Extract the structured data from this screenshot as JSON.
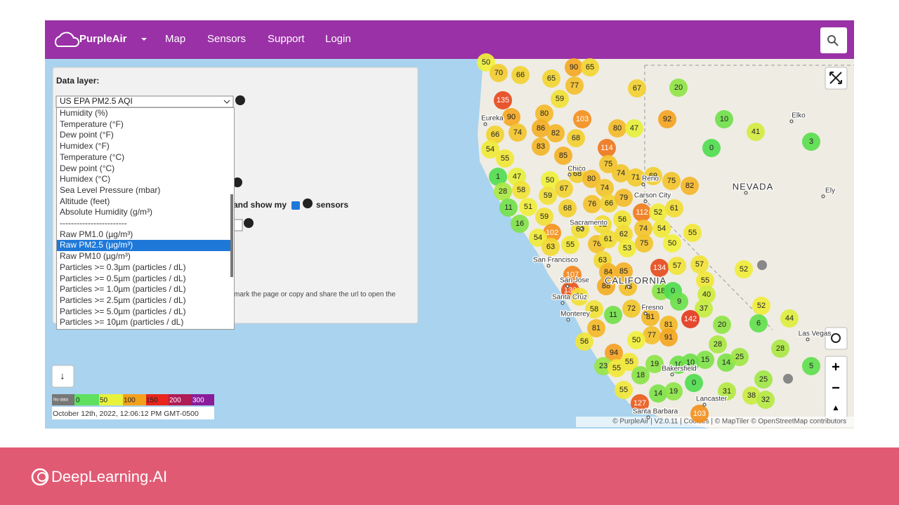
{
  "navbar": {
    "brand": "PurpleAir",
    "links": [
      "Map",
      "Sensors",
      "Support",
      "Login"
    ]
  },
  "panel": {
    "label": "Data layer:",
    "selected": "US EPA PM2.5 AQI",
    "options": [
      "Humidity (%)",
      "Temperature (°F)",
      "Dew point (°F)",
      "Humidex (°F)",
      "Temperature (°C)",
      "Dew point (°C)",
      "Humidex (°C)",
      "Sea Level Pressure (mbar)",
      "Altitude (feet)",
      "Absolute Humidity (g/m³)",
      "------------------------",
      "Raw PM1.0 (µg/m³)",
      "Raw PM2.5 (µg/m³)",
      "Raw PM10 (µg/m³)",
      "Particles >= 0.3µm (particles / dL)",
      "Particles >= 0.5µm (particles / dL)",
      "Particles >= 1.0µm (particles / dL)",
      "Particles >= 2.5µm (particles / dL)",
      "Particles >= 5.0µm (particles / dL)",
      "Particles >= 10µm (particles / dL)"
    ],
    "highlighted_option": 12,
    "show_my_text": "and show my",
    "sensors_text": "sensors",
    "share_text": "mark the page or copy and share the url to open the",
    "download_button": "↓"
  },
  "map": {
    "places": [
      "Eureka",
      "Chico",
      "Reno",
      "Carson City",
      "Sacramento",
      "San Francisco",
      "San Jose",
      "Santa Cruz",
      "Monterey",
      "CALIFORNIA",
      "NEVADA",
      "Elko",
      "Ely",
      "Fresno",
      "Bakersfield",
      "Las Vegas",
      "Lancaster",
      "Santa Barbara"
    ],
    "markers": [
      50,
      70,
      66,
      65,
      90,
      65,
      77,
      59,
      135,
      67,
      20,
      66,
      90,
      80,
      103,
      80,
      47,
      92,
      10,
      41,
      3,
      0,
      74,
      86,
      82,
      68,
      114,
      54,
      83,
      85,
      55,
      75,
      74,
      1,
      47,
      50,
      67,
      68,
      80,
      74,
      71,
      69,
      75,
      82,
      28,
      58,
      11,
      51,
      59,
      68,
      76,
      66,
      79,
      112,
      52,
      61,
      16,
      59,
      102,
      60,
      62,
      56,
      54,
      55,
      76,
      61,
      62,
      74,
      54,
      63,
      53,
      75,
      50,
      55,
      63,
      134,
      57,
      57,
      55,
      52,
      40,
      37,
      52,
      6,
      44,
      20,
      107,
      130,
      84,
      85,
      88,
      76,
      18,
      0,
      9,
      59,
      58,
      11,
      72,
      81,
      81,
      142,
      77,
      91,
      50,
      81,
      56,
      28,
      94,
      23,
      55,
      55,
      19,
      10,
      15,
      14,
      25,
      10,
      28,
      5,
      25,
      55,
      18,
      14,
      19,
      0,
      31,
      38,
      32,
      127,
      103
    ],
    "zoom_in": "+",
    "zoom_out": "−",
    "north": "▲"
  },
  "legend": {
    "no_data": "No data",
    "ticks": [
      0,
      50,
      100,
      150,
      200,
      300
    ]
  },
  "timestamp": "October 12th, 2022, 12:06:12 PM GMT-0500",
  "attribution": "© PurpleAir | V2.0.11 | Cookies | © MapTiler © OpenStreetMap contributors",
  "footer": {
    "brand": "DeepLearning.AI"
  }
}
